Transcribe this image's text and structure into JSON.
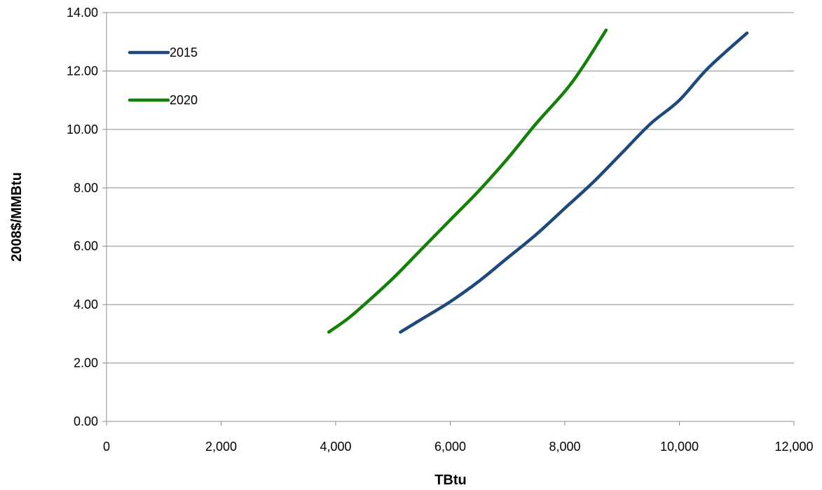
{
  "chart_data": {
    "type": "line",
    "title": "",
    "xlabel": "TBtu",
    "ylabel": "2008$/MMBtu",
    "xlim": [
      0,
      12000
    ],
    "ylim": [
      0,
      14
    ],
    "x_ticks": [
      "0",
      "2,000",
      "4,000",
      "6,000",
      "8,000",
      "10,000",
      "12,000"
    ],
    "y_ticks": [
      "0.00",
      "2.00",
      "4.00",
      "6.00",
      "8.00",
      "10.00",
      "12.00",
      "14.00"
    ],
    "grid": "horizontal",
    "legend_position": "top-left",
    "series": [
      {
        "name": "2015",
        "color": "#1f497d",
        "points": [
          [
            5130,
            3.06
          ],
          [
            5500,
            3.5
          ],
          [
            6000,
            4.1
          ],
          [
            6500,
            4.8
          ],
          [
            7000,
            5.6
          ],
          [
            7500,
            6.4
          ],
          [
            8000,
            7.3
          ],
          [
            8500,
            8.2
          ],
          [
            9000,
            9.2
          ],
          [
            9500,
            10.2
          ],
          [
            10000,
            11.0
          ],
          [
            10500,
            12.1
          ],
          [
            11180,
            13.3
          ]
        ]
      },
      {
        "name": "2020",
        "color": "#138007",
        "points": [
          [
            3880,
            3.06
          ],
          [
            4200,
            3.5
          ],
          [
            4500,
            4.0
          ],
          [
            5000,
            4.9
          ],
          [
            5500,
            5.9
          ],
          [
            6000,
            6.9
          ],
          [
            6500,
            7.9
          ],
          [
            7000,
            9.0
          ],
          [
            7500,
            10.2
          ],
          [
            8000,
            11.3
          ],
          [
            8300,
            12.1
          ],
          [
            8720,
            13.4
          ]
        ]
      }
    ]
  }
}
